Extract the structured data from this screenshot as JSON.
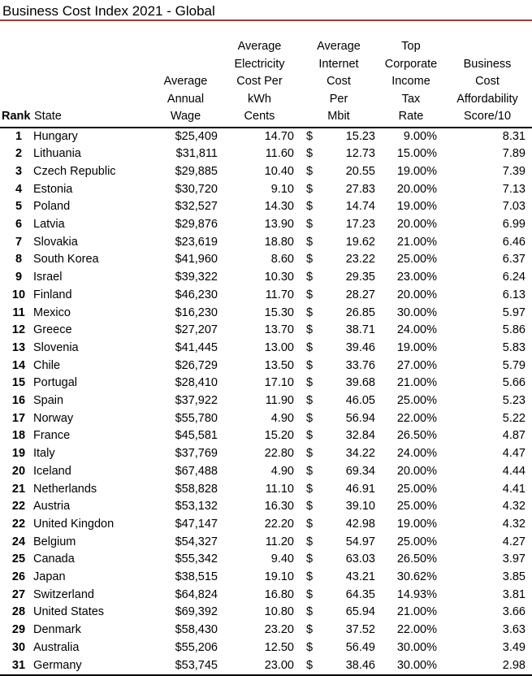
{
  "title": "Business Cost Index 2021 - Global",
  "colors": {
    "title_rule": "#9a3b38",
    "header_rule": "#000000",
    "text": "#000000",
    "background": "#ffffff"
  },
  "table": {
    "columns": [
      {
        "id": "rank",
        "lines": [
          "Rank"
        ]
      },
      {
        "id": "state",
        "lines": [
          "State"
        ]
      },
      {
        "id": "wage",
        "lines": [
          "Average",
          "Annual",
          "Wage"
        ]
      },
      {
        "id": "electricity",
        "lines": [
          "Average",
          "Electricity",
          "Cost Per",
          "kWh",
          "Cents"
        ]
      },
      {
        "id": "internet",
        "lines": [
          "Average",
          "Internet",
          "Cost",
          "Per",
          "Mbit"
        ]
      },
      {
        "id": "tax",
        "lines": [
          "Top",
          "Corporate",
          "Income",
          "Tax",
          "Rate"
        ]
      },
      {
        "id": "score",
        "lines": [
          "Business",
          "Cost",
          "Affordability",
          "Score/10"
        ]
      }
    ],
    "rows": [
      {
        "rank": "1",
        "state": "Hungary",
        "wage": "$25,409",
        "electricity": "14.70",
        "currency": "$",
        "internet": "15.23",
        "tax": "9.00%",
        "score": "8.31"
      },
      {
        "rank": "2",
        "state": "Lithuania",
        "wage": "$31,811",
        "electricity": "11.60",
        "currency": "$",
        "internet": "12.73",
        "tax": "15.00%",
        "score": "7.89"
      },
      {
        "rank": "3",
        "state": "Czech Republic",
        "wage": "$29,885",
        "electricity": "10.40",
        "currency": "$",
        "internet": "20.55",
        "tax": "19.00%",
        "score": "7.39"
      },
      {
        "rank": "4",
        "state": "Estonia",
        "wage": "$30,720",
        "electricity": "9.10",
        "currency": "$",
        "internet": "27.83",
        "tax": "20.00%",
        "score": "7.13"
      },
      {
        "rank": "5",
        "state": "Poland",
        "wage": "$32,527",
        "electricity": "14.30",
        "currency": "$",
        "internet": "14.74",
        "tax": "19.00%",
        "score": "7.03"
      },
      {
        "rank": "6",
        "state": "Latvia",
        "wage": "$29,876",
        "electricity": "13.90",
        "currency": "$",
        "internet": "17.23",
        "tax": "20.00%",
        "score": "6.99"
      },
      {
        "rank": "7",
        "state": "Slovakia",
        "wage": "$23,619",
        "electricity": "18.80",
        "currency": "$",
        "internet": "19.62",
        "tax": "21.00%",
        "score": "6.46"
      },
      {
        "rank": "8",
        "state": "South Korea",
        "wage": "$41,960",
        "electricity": "8.60",
        "currency": "$",
        "internet": "23.22",
        "tax": "25.00%",
        "score": "6.37"
      },
      {
        "rank": "9",
        "state": "Israel",
        "wage": "$39,322",
        "electricity": "10.30",
        "currency": "$",
        "internet": "29.35",
        "tax": "23.00%",
        "score": "6.24"
      },
      {
        "rank": "10",
        "state": "Finland",
        "wage": "$46,230",
        "electricity": "11.70",
        "currency": "$",
        "internet": "28.27",
        "tax": "20.00%",
        "score": "6.13"
      },
      {
        "rank": "11",
        "state": "Mexico",
        "wage": "$16,230",
        "electricity": "15.30",
        "currency": "$",
        "internet": "26.85",
        "tax": "30.00%",
        "score": "5.97"
      },
      {
        "rank": "12",
        "state": "Greece",
        "wage": "$27,207",
        "electricity": "13.70",
        "currency": "$",
        "internet": "38.71",
        "tax": "24.00%",
        "score": "5.86"
      },
      {
        "rank": "13",
        "state": "Slovenia",
        "wage": "$41,445",
        "electricity": "13.00",
        "currency": "$",
        "internet": "39.46",
        "tax": "19.00%",
        "score": "5.83"
      },
      {
        "rank": "14",
        "state": "Chile",
        "wage": "$26,729",
        "electricity": "13.50",
        "currency": "$",
        "internet": "33.76",
        "tax": "27.00%",
        "score": "5.79"
      },
      {
        "rank": "15",
        "state": "Portugal",
        "wage": "$28,410",
        "electricity": "17.10",
        "currency": "$",
        "internet": "39.68",
        "tax": "21.00%",
        "score": "5.66"
      },
      {
        "rank": "16",
        "state": "Spain",
        "wage": "$37,922",
        "electricity": "11.90",
        "currency": "$",
        "internet": "46.05",
        "tax": "25.00%",
        "score": "5.23"
      },
      {
        "rank": "17",
        "state": "Norway",
        "wage": "$55,780",
        "electricity": "4.90",
        "currency": "$",
        "internet": "56.94",
        "tax": "22.00%",
        "score": "5.22"
      },
      {
        "rank": "18",
        "state": "France",
        "wage": "$45,581",
        "electricity": "15.20",
        "currency": "$",
        "internet": "32.84",
        "tax": "26.50%",
        "score": "4.87"
      },
      {
        "rank": "19",
        "state": "Italy",
        "wage": "$37,769",
        "electricity": "22.80",
        "currency": "$",
        "internet": "34.22",
        "tax": "24.00%",
        "score": "4.47"
      },
      {
        "rank": "20",
        "state": "Iceland",
        "wage": "$67,488",
        "electricity": "4.90",
        "currency": "$",
        "internet": "69.34",
        "tax": "20.00%",
        "score": "4.44"
      },
      {
        "rank": "21",
        "state": "Netherlands",
        "wage": "$58,828",
        "electricity": "11.10",
        "currency": "$",
        "internet": "46.91",
        "tax": "25.00%",
        "score": "4.41"
      },
      {
        "rank": "22",
        "state": "Austria",
        "wage": "$53,132",
        "electricity": "16.30",
        "currency": "$",
        "internet": "39.10",
        "tax": "25.00%",
        "score": "4.32"
      },
      {
        "rank": "22",
        "state": "United Kingdon",
        "wage": "$47,147",
        "electricity": "22.20",
        "currency": "$",
        "internet": "42.98",
        "tax": "19.00%",
        "score": "4.32"
      },
      {
        "rank": "24",
        "state": "Belgium",
        "wage": "$54,327",
        "electricity": "11.20",
        "currency": "$",
        "internet": "54.97",
        "tax": "25.00%",
        "score": "4.27"
      },
      {
        "rank": "25",
        "state": "Canada",
        "wage": "$55,342",
        "electricity": "9.40",
        "currency": "$",
        "internet": "63.03",
        "tax": "26.50%",
        "score": "3.97"
      },
      {
        "rank": "26",
        "state": "Japan",
        "wage": "$38,515",
        "electricity": "19.10",
        "currency": "$",
        "internet": "43.21",
        "tax": "30.62%",
        "score": "3.85"
      },
      {
        "rank": "27",
        "state": "Switzerland",
        "wage": "$64,824",
        "electricity": "16.80",
        "currency": "$",
        "internet": "64.35",
        "tax": "14.93%",
        "score": "3.81"
      },
      {
        "rank": "28",
        "state": "United States",
        "wage": "$69,392",
        "electricity": "10.80",
        "currency": "$",
        "internet": "65.94",
        "tax": "21.00%",
        "score": "3.66"
      },
      {
        "rank": "29",
        "state": "Denmark",
        "wage": "$58,430",
        "electricity": "23.20",
        "currency": "$",
        "internet": "37.52",
        "tax": "22.00%",
        "score": "3.63"
      },
      {
        "rank": "30",
        "state": "Australia",
        "wage": "$55,206",
        "electricity": "12.50",
        "currency": "$",
        "internet": "56.49",
        "tax": "30.00%",
        "score": "3.49"
      },
      {
        "rank": "31",
        "state": "Germany",
        "wage": "$53,745",
        "electricity": "23.00",
        "currency": "$",
        "internet": "38.46",
        "tax": "30.00%",
        "score": "2.98"
      }
    ]
  }
}
